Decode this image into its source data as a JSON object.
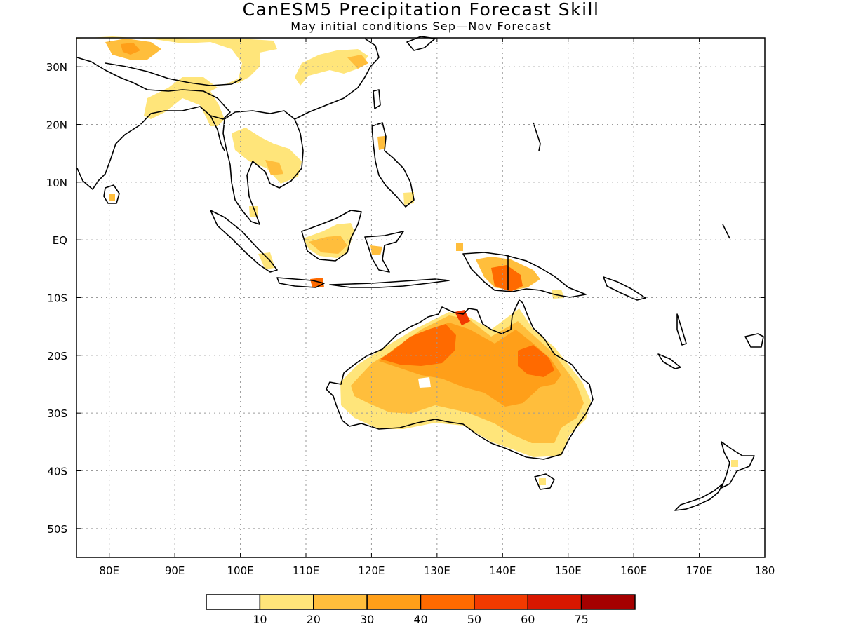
{
  "title": "CanESM5 Precipitation Forecast Skill",
  "subtitle": "May initial conditions  Sep—Nov Forecast",
  "map": {
    "lon_range": [
      75,
      180
    ],
    "lat_range": [
      -55,
      35
    ],
    "lon_ticks": [
      {
        "value": 80,
        "label": "80E"
      },
      {
        "value": 90,
        "label": "90E"
      },
      {
        "value": 100,
        "label": "100E"
      },
      {
        "value": 110,
        "label": "110E"
      },
      {
        "value": 120,
        "label": "120E"
      },
      {
        "value": 130,
        "label": "130E"
      },
      {
        "value": 140,
        "label": "140E"
      },
      {
        "value": 150,
        "label": "150E"
      },
      {
        "value": 160,
        "label": "160E"
      },
      {
        "value": 170,
        "label": "170E"
      },
      {
        "value": 180,
        "label": "180"
      }
    ],
    "lat_ticks": [
      {
        "value": 30,
        "label": "30N"
      },
      {
        "value": 20,
        "label": "20N"
      },
      {
        "value": 10,
        "label": "10N"
      },
      {
        "value": 0,
        "label": "EQ"
      },
      {
        "value": -10,
        "label": "10S"
      },
      {
        "value": -20,
        "label": "20S"
      },
      {
        "value": -30,
        "label": "30S"
      },
      {
        "value": -40,
        "label": "40S"
      },
      {
        "value": -50,
        "label": "50S"
      }
    ],
    "grid": true
  },
  "colorbar": {
    "levels": [
      "10",
      "20",
      "30",
      "40",
      "50",
      "60",
      "75"
    ],
    "colors": [
      "#ffffff",
      "#ffe57a",
      "#ffbe3c",
      "#ff9f19",
      "#ff6a00",
      "#f23a00",
      "#d81700",
      "#a50000"
    ]
  }
}
